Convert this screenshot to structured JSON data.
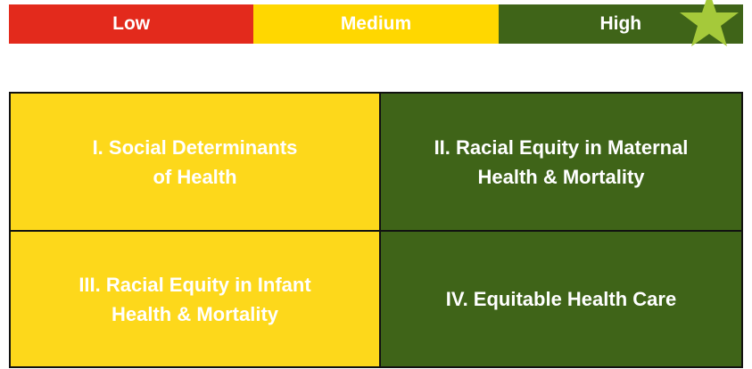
{
  "legend": [
    "Low",
    "Medium",
    "High"
  ],
  "cells": [
    {
      "lines": [
        "I. Social Determinants",
        "of Health"
      ]
    },
    {
      "lines": [
        "II. Racial Equity in Maternal",
        "Health & Mortality"
      ]
    },
    {
      "lines": [
        "III. Racial Equity in Infant",
        "Health & Mortality"
      ]
    },
    {
      "lines": [
        "IV. Equitable Health Care"
      ]
    }
  ]
}
